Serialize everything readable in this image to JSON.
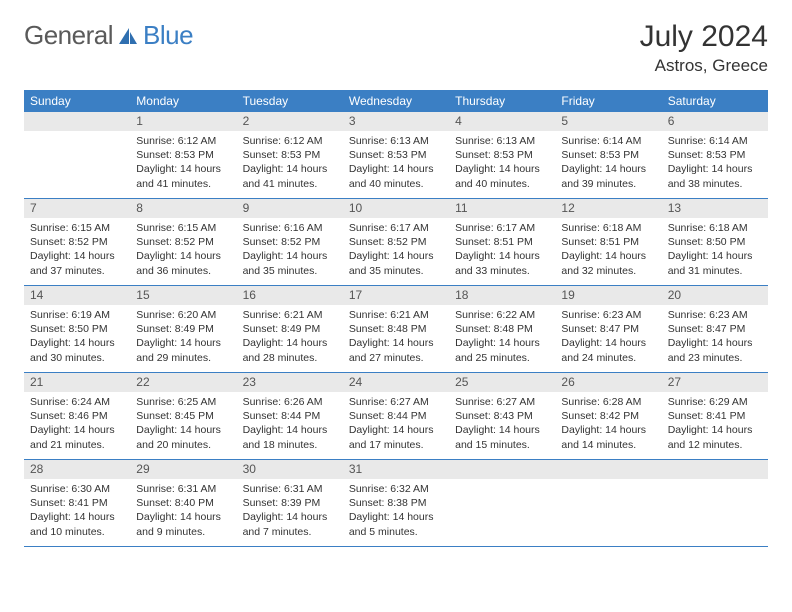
{
  "brand": {
    "part1": "General",
    "part2": "Blue"
  },
  "colors": {
    "header_bg": "#3b7fc4",
    "daynum_bg": "#e9e9e9",
    "border": "#3b7fc4",
    "text": "#333333",
    "brand_gray": "#5a5a5a",
    "brand_blue": "#3b7fc4"
  },
  "title": "July 2024",
  "location": "Astros, Greece",
  "weekdays": [
    "Sunday",
    "Monday",
    "Tuesday",
    "Wednesday",
    "Thursday",
    "Friday",
    "Saturday"
  ],
  "start_offset": 1,
  "days": [
    {
      "n": 1,
      "sr": "6:12 AM",
      "ss": "8:53 PM",
      "dl": "14 hours and 41 minutes."
    },
    {
      "n": 2,
      "sr": "6:12 AM",
      "ss": "8:53 PM",
      "dl": "14 hours and 41 minutes."
    },
    {
      "n": 3,
      "sr": "6:13 AM",
      "ss": "8:53 PM",
      "dl": "14 hours and 40 minutes."
    },
    {
      "n": 4,
      "sr": "6:13 AM",
      "ss": "8:53 PM",
      "dl": "14 hours and 40 minutes."
    },
    {
      "n": 5,
      "sr": "6:14 AM",
      "ss": "8:53 PM",
      "dl": "14 hours and 39 minutes."
    },
    {
      "n": 6,
      "sr": "6:14 AM",
      "ss": "8:53 PM",
      "dl": "14 hours and 38 minutes."
    },
    {
      "n": 7,
      "sr": "6:15 AM",
      "ss": "8:52 PM",
      "dl": "14 hours and 37 minutes."
    },
    {
      "n": 8,
      "sr": "6:15 AM",
      "ss": "8:52 PM",
      "dl": "14 hours and 36 minutes."
    },
    {
      "n": 9,
      "sr": "6:16 AM",
      "ss": "8:52 PM",
      "dl": "14 hours and 35 minutes."
    },
    {
      "n": 10,
      "sr": "6:17 AM",
      "ss": "8:52 PM",
      "dl": "14 hours and 35 minutes."
    },
    {
      "n": 11,
      "sr": "6:17 AM",
      "ss": "8:51 PM",
      "dl": "14 hours and 33 minutes."
    },
    {
      "n": 12,
      "sr": "6:18 AM",
      "ss": "8:51 PM",
      "dl": "14 hours and 32 minutes."
    },
    {
      "n": 13,
      "sr": "6:18 AM",
      "ss": "8:50 PM",
      "dl": "14 hours and 31 minutes."
    },
    {
      "n": 14,
      "sr": "6:19 AM",
      "ss": "8:50 PM",
      "dl": "14 hours and 30 minutes."
    },
    {
      "n": 15,
      "sr": "6:20 AM",
      "ss": "8:49 PM",
      "dl": "14 hours and 29 minutes."
    },
    {
      "n": 16,
      "sr": "6:21 AM",
      "ss": "8:49 PM",
      "dl": "14 hours and 28 minutes."
    },
    {
      "n": 17,
      "sr": "6:21 AM",
      "ss": "8:48 PM",
      "dl": "14 hours and 27 minutes."
    },
    {
      "n": 18,
      "sr": "6:22 AM",
      "ss": "8:48 PM",
      "dl": "14 hours and 25 minutes."
    },
    {
      "n": 19,
      "sr": "6:23 AM",
      "ss": "8:47 PM",
      "dl": "14 hours and 24 minutes."
    },
    {
      "n": 20,
      "sr": "6:23 AM",
      "ss": "8:47 PM",
      "dl": "14 hours and 23 minutes."
    },
    {
      "n": 21,
      "sr": "6:24 AM",
      "ss": "8:46 PM",
      "dl": "14 hours and 21 minutes."
    },
    {
      "n": 22,
      "sr": "6:25 AM",
      "ss": "8:45 PM",
      "dl": "14 hours and 20 minutes."
    },
    {
      "n": 23,
      "sr": "6:26 AM",
      "ss": "8:44 PM",
      "dl": "14 hours and 18 minutes."
    },
    {
      "n": 24,
      "sr": "6:27 AM",
      "ss": "8:44 PM",
      "dl": "14 hours and 17 minutes."
    },
    {
      "n": 25,
      "sr": "6:27 AM",
      "ss": "8:43 PM",
      "dl": "14 hours and 15 minutes."
    },
    {
      "n": 26,
      "sr": "6:28 AM",
      "ss": "8:42 PM",
      "dl": "14 hours and 14 minutes."
    },
    {
      "n": 27,
      "sr": "6:29 AM",
      "ss": "8:41 PM",
      "dl": "14 hours and 12 minutes."
    },
    {
      "n": 28,
      "sr": "6:30 AM",
      "ss": "8:41 PM",
      "dl": "14 hours and 10 minutes."
    },
    {
      "n": 29,
      "sr": "6:31 AM",
      "ss": "8:40 PM",
      "dl": "14 hours and 9 minutes."
    },
    {
      "n": 30,
      "sr": "6:31 AM",
      "ss": "8:39 PM",
      "dl": "14 hours and 7 minutes."
    },
    {
      "n": 31,
      "sr": "6:32 AM",
      "ss": "8:38 PM",
      "dl": "14 hours and 5 minutes."
    }
  ],
  "labels": {
    "sunrise": "Sunrise:",
    "sunset": "Sunset:",
    "daylight": "Daylight:"
  }
}
